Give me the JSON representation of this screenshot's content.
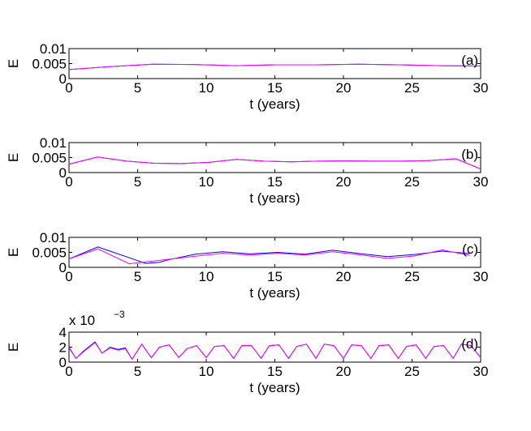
{
  "chart_data": [
    {
      "type": "line",
      "panel_label": "(a)",
      "ylabel": "E",
      "xlabel": "t (years)",
      "xlim": [
        0,
        30
      ],
      "ylim": [
        0,
        0.01
      ],
      "xticks": [
        "0",
        "5",
        "10",
        "15",
        "20",
        "25",
        "30"
      ],
      "yticks": [
        "0",
        "0.005",
        "0.01"
      ],
      "grid": false,
      "series": [
        {
          "color": "#0000ff",
          "x": [
            0,
            3,
            6.1,
            9.1,
            12.1,
            15.1,
            18.1,
            21.1,
            24.1,
            27.1,
            30
          ],
          "y": [
            0.003,
            0.004,
            0.0048,
            0.0047,
            0.0043,
            0.0046,
            0.0046,
            0.0048,
            0.0046,
            0.0043,
            0.0042
          ]
        },
        {
          "color": "#ff00ff",
          "x": [
            0,
            3,
            6.1,
            9.1,
            12.1,
            15.1,
            18.1,
            21.1,
            24.1,
            27.1,
            30
          ],
          "y": [
            0.003,
            0.004,
            0.0048,
            0.0047,
            0.0043,
            0.0046,
            0.0046,
            0.0048,
            0.0046,
            0.0043,
            0.0042
          ]
        }
      ]
    },
    {
      "type": "line",
      "panel_label": "(b)",
      "ylabel": "E",
      "xlabel": "t (years)",
      "xlim": [
        0,
        30
      ],
      "ylim": [
        0,
        0.01
      ],
      "xticks": [
        "0",
        "5",
        "10",
        "15",
        "20",
        "25",
        "30"
      ],
      "yticks": [
        "0",
        "0.005",
        "0.01"
      ],
      "grid": false,
      "series": [
        {
          "color": "#0000ff",
          "x": [
            0,
            2.1,
            4.2,
            6.2,
            8.2,
            10.2,
            12.2,
            14.2,
            16.2,
            18.2,
            20.2,
            22.2,
            24.2,
            26.2,
            28.2,
            30
          ],
          "y": [
            0.0028,
            0.0052,
            0.0038,
            0.0031,
            0.003,
            0.0034,
            0.0044,
            0.0038,
            0.0036,
            0.0038,
            0.0039,
            0.0038,
            0.0038,
            0.004,
            0.0046,
            0.0012
          ]
        },
        {
          "color": "#ff00ff",
          "x": [
            0,
            2.1,
            4.2,
            6.2,
            8.2,
            10.2,
            12.2,
            14.2,
            16.2,
            18.2,
            20.2,
            22.2,
            24.2,
            26.2,
            28.2,
            30
          ],
          "y": [
            0.0028,
            0.0052,
            0.0038,
            0.0031,
            0.003,
            0.0034,
            0.0044,
            0.0038,
            0.0036,
            0.0038,
            0.0039,
            0.0038,
            0.0038,
            0.004,
            0.0046,
            0.0012
          ]
        }
      ]
    },
    {
      "type": "line",
      "panel_label": "(c)",
      "ylabel": "E",
      "xlabel": "t (years)",
      "xlim": [
        0,
        30
      ],
      "ylim": [
        0,
        0.01
      ],
      "xticks": [
        "0",
        "5",
        "10",
        "15",
        "20",
        "25",
        "30"
      ],
      "yticks": [
        "0",
        "0.005",
        "0.01"
      ],
      "grid": false,
      "series": [
        {
          "color": "#0000ff",
          "x": [
            0,
            2.1,
            4.4,
            5.6,
            6.6,
            7.2,
            9.2,
            11.2,
            13.2,
            15.2,
            17.2,
            19.2,
            21.2,
            23.2,
            25.2,
            27.2,
            29.2
          ],
          "y": [
            0.0028,
            0.0068,
            0.0032,
            0.0013,
            0.0017,
            0.0025,
            0.0044,
            0.0052,
            0.0045,
            0.005,
            0.0044,
            0.0057,
            0.0046,
            0.0036,
            0.0043,
            0.0054,
            0.0046
          ]
        },
        {
          "color": "#ff00ff",
          "x": [
            0,
            2.1,
            4.4,
            9.2,
            11.2,
            13.2,
            15.2,
            17.2,
            19.2,
            21.2,
            23.2,
            25.2,
            27.2,
            29.2
          ],
          "y": [
            0.0028,
            0.0062,
            0.0012,
            0.0037,
            0.0047,
            0.0041,
            0.0047,
            0.0041,
            0.0052,
            0.0042,
            0.003,
            0.0038,
            0.0058,
            0.004
          ]
        }
      ]
    },
    {
      "type": "line",
      "panel_label": "(d)",
      "ylabel": "E",
      "xlabel": "t (years)",
      "xlim": [
        0,
        30
      ],
      "ylim": [
        0,
        0.004
      ],
      "y_multiplier": "x 10",
      "y_exponent": "−3",
      "xticks": [
        "0",
        "5",
        "10",
        "15",
        "20",
        "25",
        "30"
      ],
      "yticks": [
        "0",
        "2",
        "4"
      ],
      "grid": false,
      "series": [
        {
          "color": "#0000ff",
          "x": [
            0,
            0.5,
            1.0,
            1.9,
            2.4,
            3.0,
            3.6,
            4.1,
            4.6,
            5.3,
            6.0,
            6.6,
            7.3,
            8.0,
            8.6,
            9.3,
            10.0,
            10.6,
            11.3,
            12.0,
            12.6,
            13.3,
            14.0,
            14.6,
            15.3,
            16.0,
            16.6,
            17.3,
            18.0,
            18.6,
            19.3,
            20.0,
            20.6,
            21.3,
            22.0,
            22.6,
            23.3,
            24.0,
            24.6,
            25.3,
            26.0,
            26.6,
            27.3,
            28.0,
            28.6,
            29.3,
            30
          ],
          "y": [
            0.002,
            0.0005,
            0.0014,
            0.0027,
            0.0012,
            0.002,
            0.0017,
            0.0019,
            0.0004,
            0.0024,
            0.0006,
            0.002,
            0.0023,
            0.0006,
            0.0018,
            0.0022,
            0.0006,
            0.0021,
            0.0022,
            0.0005,
            0.0022,
            0.0022,
            0.0005,
            0.0022,
            0.0023,
            0.0005,
            0.0021,
            0.0024,
            0.0005,
            0.0024,
            0.0022,
            0.0005,
            0.0023,
            0.0022,
            0.0005,
            0.0022,
            0.0023,
            0.0005,
            0.0021,
            0.0023,
            0.0005,
            0.0021,
            0.0022,
            0.0005,
            0.0024,
            0.0022,
            0.0006
          ]
        },
        {
          "color": "#ff00ff",
          "x": [
            0,
            0.5,
            1.0,
            1.9,
            2.4,
            3.0,
            3.6,
            4.1,
            4.6,
            5.3,
            6.0,
            6.6,
            7.3,
            8.0,
            8.6,
            9.3,
            10.0,
            10.6,
            11.3,
            12.0,
            12.6,
            13.3,
            14.0,
            14.6,
            15.3,
            16.0,
            16.6,
            17.3,
            18.0,
            18.6,
            19.3,
            20.0,
            20.6,
            21.3,
            22.0,
            22.6,
            23.3,
            24.0,
            24.6,
            25.3,
            26.0,
            26.6,
            27.3,
            28.0,
            28.6,
            29.3,
            30
          ],
          "y": [
            0.0019,
            0.0005,
            0.0013,
            0.0026,
            0.0012,
            0.0019,
            0.0016,
            0.0018,
            0.0004,
            0.0024,
            0.0006,
            0.002,
            0.0023,
            0.0006,
            0.0018,
            0.0022,
            0.0006,
            0.0021,
            0.0022,
            0.0005,
            0.0022,
            0.0022,
            0.0005,
            0.0022,
            0.0023,
            0.0005,
            0.0021,
            0.0024,
            0.0005,
            0.0024,
            0.0022,
            0.0005,
            0.0023,
            0.0022,
            0.0005,
            0.0022,
            0.0023,
            0.0005,
            0.0021,
            0.0023,
            0.0005,
            0.0021,
            0.0022,
            0.0005,
            0.0024,
            0.0022,
            0.0006
          ]
        }
      ]
    }
  ]
}
